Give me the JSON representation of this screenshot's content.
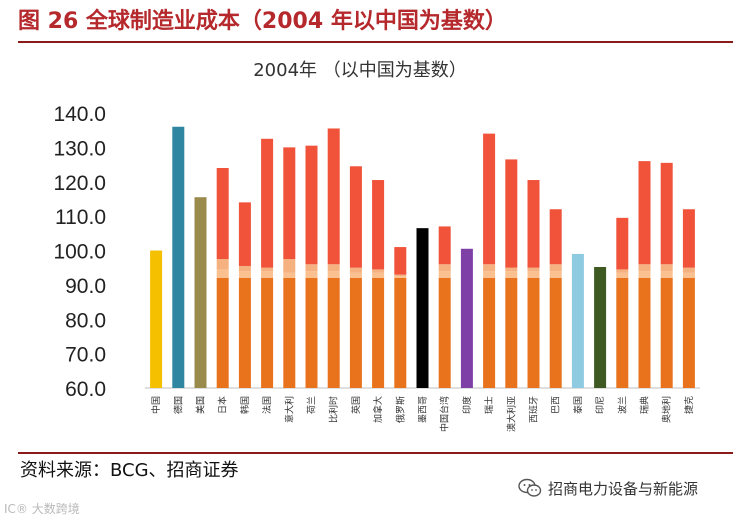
{
  "header": {
    "title": "图 26 全球制造业成本（2004 年以中国为基数）"
  },
  "chart_data": {
    "type": "bar",
    "title": "2004年 （以中国为基数）",
    "ylim": [
      60,
      140
    ],
    "yticks": [
      "140.0",
      "130.0",
      "120.0",
      "110.0",
      "100.0",
      "90.0",
      "80.0",
      "70.0",
      "60.0"
    ],
    "categories": [
      "中国",
      "德国",
      "美国",
      "日本",
      "韩国",
      "法国",
      "意大利",
      "荷兰",
      "比利时",
      "英国",
      "加拿大",
      "俄罗斯",
      "墨西哥",
      "中国台湾",
      "印度",
      "瑞士",
      "澳大利亚",
      "西班牙",
      "巴西",
      "泰国",
      "印尼",
      "波兰",
      "瑞典",
      "奥地利",
      "捷克"
    ],
    "single": {
      "中国": 100,
      "德国": 136,
      "美国": 115.5,
      "墨西哥": 106.5,
      "印度": 100.5,
      "泰国": 99,
      "印尼": 95.2
    },
    "single_colors": {
      "中国": "#f5c000",
      "德国": "#2e86a0",
      "美国": "#9a8b4c",
      "墨西哥": "#000000",
      "印度": "#7e3fa6",
      "泰国": "#8ecae0",
      "印尼": "#3e5a22"
    },
    "stacked": {
      "base": 92,
      "layers": {
        "日本": [
          2.5,
          3,
          26.5
        ],
        "韩国": [
          2,
          1.5,
          18.5
        ],
        "法国": [
          2,
          1,
          37.5
        ],
        "意大利": [
          1.5,
          4,
          32.5
        ],
        "荷兰": [
          2,
          2,
          34.5
        ],
        "比利时": [
          2,
          2,
          39.5
        ],
        "英国": [
          1.5,
          1.5,
          29.5
        ],
        "加拿大": [
          1.5,
          1,
          26
        ],
        "俄罗斯": [
          0.5,
          0.5,
          8
        ],
        "中国台湾": [
          2,
          2,
          11
        ],
        "瑞士": [
          2,
          2,
          38
        ],
        "澳大利亚": [
          2,
          1,
          31.5
        ],
        "西班牙": [
          2,
          1,
          25.5
        ],
        "巴西": [
          2,
          2,
          16
        ],
        "波兰": [
          1.5,
          1,
          15
        ],
        "瑞典": [
          2,
          2,
          30
        ],
        "奥地利": [
          2,
          2,
          29.5
        ],
        "捷克": [
          1.5,
          1.5,
          17
        ]
      }
    },
    "stack_colors": [
      "#e8731c",
      "#fac090",
      "#f5b180",
      "#f0523a"
    ]
  },
  "footer": {
    "source": "资料来源：BCG、招商证券",
    "watermark_left": "IC® 大数跨境",
    "watermark_right": "招商电力设备与新能源",
    "watermark_icon": "wechat-icon"
  }
}
